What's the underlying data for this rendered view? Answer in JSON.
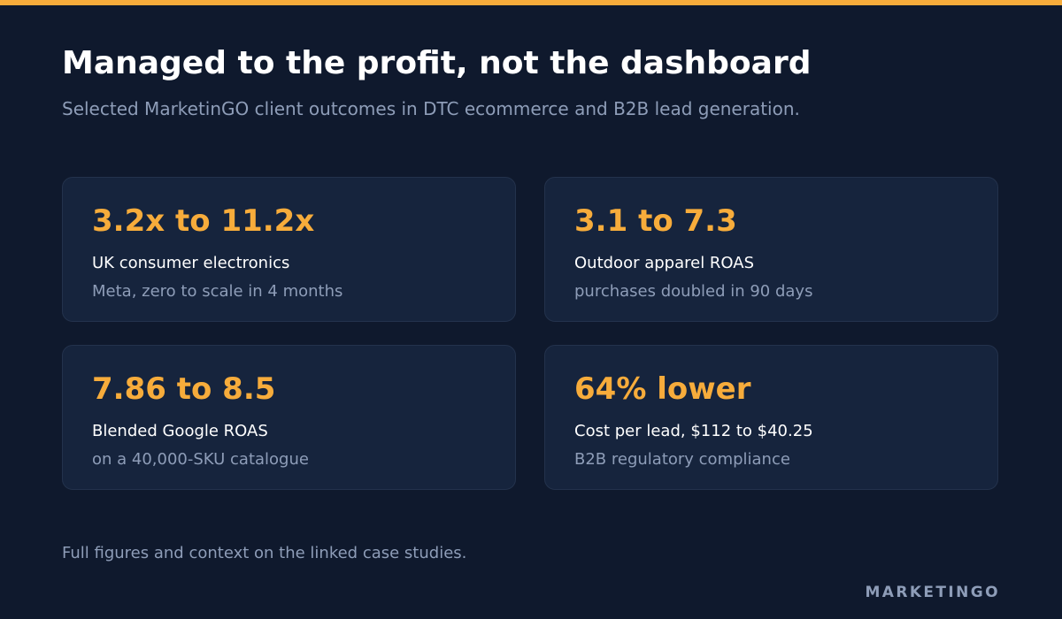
{
  "header": {
    "title": "Managed to the profit, not the dashboard",
    "subtitle": "Selected MarketinGO client outcomes in DTC ecommerce and B2B lead generation."
  },
  "cards": [
    {
      "metric": "3.2x to 11.2x",
      "label": "UK consumer electronics",
      "note": "Meta, zero to scale in 4 months"
    },
    {
      "metric": "3.1 to 7.3",
      "label": "Outdoor apparel ROAS",
      "note": "purchases doubled in 90 days"
    },
    {
      "metric": "7.86 to 8.5",
      "label": "Blended Google ROAS",
      "note": "on a 40,000-SKU catalogue"
    },
    {
      "metric": "64% lower",
      "label": "Cost per lead, $112 to $40.25",
      "note": "B2B regulatory compliance"
    }
  ],
  "footer": {
    "footnote": "Full figures and context on the linked case studies.",
    "brand": "MARKETINGO"
  },
  "colors": {
    "background": "#0f192d",
    "card": "#16243d",
    "accent": "#f7ac3b",
    "text_primary": "#ffffff",
    "text_muted": "#8e9db8"
  }
}
